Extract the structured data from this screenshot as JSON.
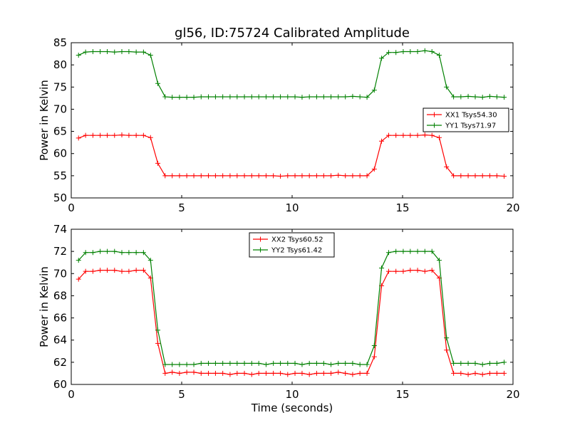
{
  "chart_data": [
    {
      "type": "line",
      "title": "gl56, ID:75724 Calibrated Amplitude",
      "xlabel": "",
      "ylabel": "Power in Kelvin",
      "xlim": [
        0,
        20
      ],
      "ylim": [
        50,
        85
      ],
      "xticks": [
        0,
        5,
        10,
        15,
        20
      ],
      "yticks": [
        50,
        55,
        60,
        65,
        70,
        75,
        80,
        85
      ],
      "legend_position": "center-right",
      "series": [
        {
          "name": "XX1 Tsys54.30",
          "color": "#ff0000",
          "x": [
            0.33,
            0.65,
            0.98,
            1.31,
            1.63,
            1.96,
            2.29,
            2.61,
            2.94,
            3.27,
            3.59,
            3.92,
            4.25,
            4.57,
            4.9,
            5.23,
            5.55,
            5.88,
            6.21,
            6.53,
            6.86,
            7.19,
            7.51,
            7.84,
            8.17,
            8.49,
            8.82,
            9.15,
            9.47,
            9.8,
            10.13,
            10.45,
            10.78,
            11.11,
            11.43,
            11.76,
            12.09,
            12.41,
            12.74,
            13.07,
            13.39,
            13.72,
            14.05,
            14.37,
            14.7,
            15.03,
            15.35,
            15.68,
            16.01,
            16.33,
            16.66,
            16.99,
            17.31,
            17.64,
            17.97,
            18.29,
            18.62,
            18.95,
            19.27,
            19.6
          ],
          "y": [
            63.5,
            64.1,
            64.1,
            64.1,
            64.1,
            64.1,
            64.2,
            64.1,
            64.1,
            64.1,
            63.6,
            57.8,
            55.0,
            55.0,
            55.0,
            55.0,
            55.0,
            55.0,
            55.0,
            55.0,
            55.0,
            55.0,
            55.0,
            55.0,
            55.0,
            55.0,
            55.0,
            55.0,
            54.9,
            55.0,
            55.0,
            55.0,
            55.0,
            55.0,
            55.0,
            55.0,
            55.1,
            55.0,
            55.0,
            55.0,
            55.0,
            56.5,
            62.8,
            64.1,
            64.1,
            64.1,
            64.1,
            64.1,
            64.2,
            64.1,
            63.6,
            57.0,
            55.0,
            55.0,
            55.0,
            55.0,
            55.0,
            55.0,
            55.0,
            54.9
          ]
        },
        {
          "name": "YY1 Tsys71.97",
          "color": "#008000",
          "x": [
            0.33,
            0.65,
            0.98,
            1.31,
            1.63,
            1.96,
            2.29,
            2.61,
            2.94,
            3.27,
            3.59,
            3.92,
            4.25,
            4.57,
            4.9,
            5.23,
            5.55,
            5.88,
            6.21,
            6.53,
            6.86,
            7.19,
            7.51,
            7.84,
            8.17,
            8.49,
            8.82,
            9.15,
            9.47,
            9.8,
            10.13,
            10.45,
            10.78,
            11.11,
            11.43,
            11.76,
            12.09,
            12.41,
            12.74,
            13.07,
            13.39,
            13.72,
            14.05,
            14.37,
            14.7,
            15.03,
            15.35,
            15.68,
            16.01,
            16.33,
            16.66,
            16.99,
            17.31,
            17.64,
            17.97,
            18.29,
            18.62,
            18.95,
            19.27,
            19.6
          ],
          "y": [
            82.2,
            82.9,
            83.0,
            83.0,
            83.0,
            82.9,
            83.0,
            83.0,
            82.9,
            82.9,
            82.2,
            75.8,
            72.8,
            72.7,
            72.7,
            72.7,
            72.7,
            72.8,
            72.8,
            72.8,
            72.8,
            72.8,
            72.8,
            72.8,
            72.8,
            72.8,
            72.8,
            72.8,
            72.8,
            72.8,
            72.8,
            72.7,
            72.8,
            72.8,
            72.8,
            72.8,
            72.8,
            72.8,
            72.9,
            72.8,
            72.7,
            74.3,
            81.5,
            82.8,
            82.8,
            83.0,
            83.0,
            83.0,
            83.2,
            83.0,
            82.2,
            75.0,
            72.8,
            72.8,
            72.9,
            72.8,
            72.7,
            72.9,
            72.8,
            72.7
          ]
        }
      ]
    },
    {
      "type": "line",
      "title": "",
      "xlabel": "Time (seconds)",
      "ylabel": "Power in Kelvin",
      "xlim": [
        0,
        20
      ],
      "ylim": [
        60,
        74
      ],
      "xticks": [
        0,
        5,
        10,
        15,
        20
      ],
      "yticks": [
        60,
        62,
        64,
        66,
        68,
        70,
        72,
        74
      ],
      "legend_position": "top-center",
      "series": [
        {
          "name": "XX2 Tsys60.52",
          "color": "#ff0000",
          "x": [
            0.33,
            0.65,
            0.98,
            1.31,
            1.63,
            1.96,
            2.29,
            2.61,
            2.94,
            3.27,
            3.59,
            3.92,
            4.25,
            4.57,
            4.9,
            5.23,
            5.55,
            5.88,
            6.21,
            6.53,
            6.86,
            7.19,
            7.51,
            7.84,
            8.17,
            8.49,
            8.82,
            9.15,
            9.47,
            9.8,
            10.13,
            10.45,
            10.78,
            11.11,
            11.43,
            11.76,
            12.09,
            12.41,
            12.74,
            13.07,
            13.39,
            13.72,
            14.05,
            14.37,
            14.7,
            15.03,
            15.35,
            15.68,
            16.01,
            16.33,
            16.66,
            16.99,
            17.31,
            17.64,
            17.97,
            18.29,
            18.62,
            18.95,
            19.27,
            19.6
          ],
          "y": [
            69.5,
            70.2,
            70.2,
            70.3,
            70.3,
            70.3,
            70.2,
            70.2,
            70.3,
            70.3,
            69.6,
            63.7,
            61.0,
            61.1,
            61.0,
            61.1,
            61.1,
            61.0,
            61.0,
            61.0,
            61.0,
            60.9,
            61.0,
            61.0,
            60.9,
            61.0,
            61.0,
            61.0,
            61.0,
            60.9,
            61.0,
            61.0,
            60.9,
            61.0,
            61.0,
            61.0,
            61.1,
            61.0,
            60.9,
            61.0,
            61.0,
            62.5,
            68.9,
            70.2,
            70.2,
            70.2,
            70.3,
            70.3,
            70.2,
            70.3,
            69.6,
            63.1,
            61.0,
            61.0,
            60.9,
            61.0,
            60.9,
            61.0,
            61.0,
            61.0
          ]
        },
        {
          "name": "YY2 Tsys61.42",
          "color": "#008000",
          "x": [
            0.33,
            0.65,
            0.98,
            1.31,
            1.63,
            1.96,
            2.29,
            2.61,
            2.94,
            3.27,
            3.59,
            3.92,
            4.25,
            4.57,
            4.9,
            5.23,
            5.55,
            5.88,
            6.21,
            6.53,
            6.86,
            7.19,
            7.51,
            7.84,
            8.17,
            8.49,
            8.82,
            9.15,
            9.47,
            9.8,
            10.13,
            10.45,
            10.78,
            11.11,
            11.43,
            11.76,
            12.09,
            12.41,
            12.74,
            13.07,
            13.39,
            13.72,
            14.05,
            14.37,
            14.7,
            15.03,
            15.35,
            15.68,
            16.01,
            16.33,
            16.66,
            16.99,
            17.31,
            17.64,
            17.97,
            18.29,
            18.62,
            18.95,
            19.27,
            19.6
          ],
          "y": [
            71.2,
            71.9,
            71.9,
            72.0,
            72.0,
            72.0,
            71.9,
            71.9,
            71.9,
            71.9,
            71.2,
            64.9,
            61.8,
            61.8,
            61.8,
            61.8,
            61.8,
            61.9,
            61.9,
            61.9,
            61.9,
            61.9,
            61.9,
            61.9,
            61.9,
            61.9,
            61.8,
            61.9,
            61.9,
            61.9,
            61.9,
            61.8,
            61.9,
            61.9,
            61.9,
            61.8,
            61.9,
            61.9,
            61.9,
            61.8,
            61.8,
            63.5,
            70.5,
            71.9,
            72.0,
            72.0,
            72.0,
            72.0,
            72.0,
            72.0,
            71.2,
            64.2,
            61.9,
            61.9,
            61.9,
            61.9,
            61.8,
            61.9,
            61.9,
            62.0
          ]
        }
      ]
    }
  ]
}
